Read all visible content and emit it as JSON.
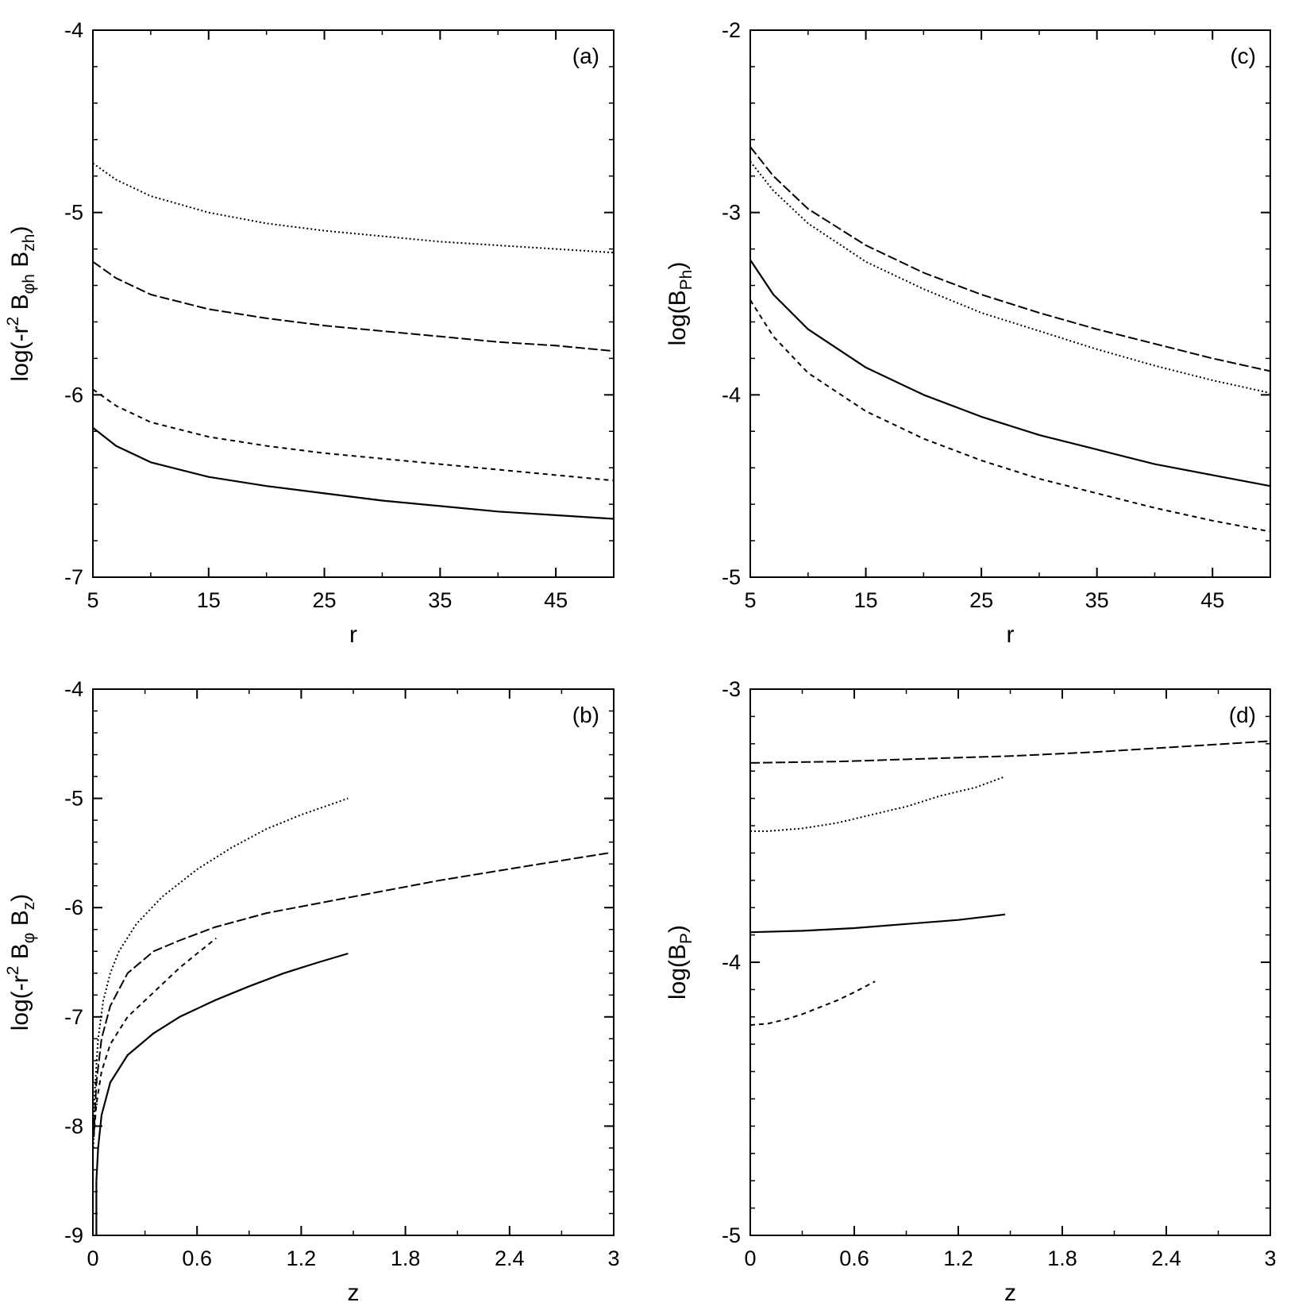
{
  "chart_data": [
    {
      "type": "line",
      "panel": "(a)",
      "xlabel": "r",
      "ylabel": {
        "base": "log(-r",
        "sup": "2",
        "mid": " B",
        "sub1": "φh",
        "mid2": " B",
        "sub2": "zh",
        "end": ")"
      },
      "xlim": [
        5,
        50
      ],
      "ylim": [
        -7,
        -4
      ],
      "xticks": [
        "5",
        "15",
        "25",
        "35",
        "45"
      ],
      "xtick_values": [
        5,
        15,
        25,
        35,
        45
      ],
      "yticks": [
        "-4",
        "-5",
        "-6",
        "-7"
      ],
      "ytick_values": [
        -4,
        -5,
        -6,
        -7
      ],
      "yminor_step": 0.2,
      "xminor_step": 5,
      "series": [
        {
          "style": "dotted",
          "x": [
            5,
            7,
            10,
            15,
            20,
            25,
            30,
            35,
            40,
            45,
            50
          ],
          "y": [
            -4.73,
            -4.82,
            -4.91,
            -5.0,
            -5.06,
            -5.1,
            -5.13,
            -5.16,
            -5.18,
            -5.2,
            -5.22
          ]
        },
        {
          "style": "dashed",
          "x": [
            5,
            7,
            10,
            15,
            20,
            25,
            30,
            35,
            40,
            45,
            50
          ],
          "y": [
            -5.27,
            -5.36,
            -5.45,
            -5.53,
            -5.58,
            -5.62,
            -5.65,
            -5.68,
            -5.71,
            -5.73,
            -5.76
          ]
        },
        {
          "style": "short-dashed",
          "x": [
            5,
            7,
            10,
            15,
            20,
            25,
            30,
            35,
            40,
            45,
            50
          ],
          "y": [
            -5.97,
            -6.06,
            -6.15,
            -6.23,
            -6.28,
            -6.32,
            -6.35,
            -6.38,
            -6.41,
            -6.44,
            -6.47
          ]
        },
        {
          "style": "solid",
          "x": [
            5,
            7,
            10,
            15,
            20,
            25,
            30,
            35,
            40,
            45,
            50
          ],
          "y": [
            -6.18,
            -6.28,
            -6.37,
            -6.45,
            -6.5,
            -6.54,
            -6.58,
            -6.61,
            -6.64,
            -6.66,
            -6.68
          ]
        }
      ]
    },
    {
      "type": "line",
      "panel": "(c)",
      "xlabel": "r",
      "ylabel": {
        "base": "log(B",
        "sub1": "Ph",
        "end": ")"
      },
      "xlim": [
        5,
        50
      ],
      "ylim": [
        -5,
        -2
      ],
      "xticks": [
        "5",
        "15",
        "25",
        "35",
        "45"
      ],
      "xtick_values": [
        5,
        15,
        25,
        35,
        45
      ],
      "yticks": [
        "-2",
        "-3",
        "-4",
        "-5"
      ],
      "ytick_values": [
        -2,
        -3,
        -4,
        -5
      ],
      "yminor_step": 0.2,
      "xminor_step": 5,
      "series": [
        {
          "style": "dashed",
          "x": [
            5,
            7,
            10,
            15,
            20,
            25,
            30,
            35,
            40,
            45,
            50
          ],
          "y": [
            -2.64,
            -2.8,
            -2.98,
            -3.18,
            -3.33,
            -3.45,
            -3.55,
            -3.64,
            -3.72,
            -3.8,
            -3.87
          ]
        },
        {
          "style": "dotted",
          "x": [
            5,
            7,
            10,
            15,
            20,
            25,
            30,
            35,
            40,
            45,
            50
          ],
          "y": [
            -2.72,
            -2.88,
            -3.06,
            -3.27,
            -3.42,
            -3.55,
            -3.65,
            -3.75,
            -3.84,
            -3.92,
            -3.99
          ]
        },
        {
          "style": "solid",
          "x": [
            5,
            7,
            10,
            15,
            20,
            25,
            30,
            35,
            40,
            45,
            50
          ],
          "y": [
            -3.26,
            -3.45,
            -3.64,
            -3.85,
            -4.0,
            -4.12,
            -4.22,
            -4.3,
            -4.38,
            -4.44,
            -4.5
          ]
        },
        {
          "style": "short-dashed",
          "x": [
            5,
            7,
            10,
            15,
            20,
            25,
            30,
            35,
            40,
            45,
            50
          ],
          "y": [
            -3.48,
            -3.68,
            -3.88,
            -4.09,
            -4.24,
            -4.36,
            -4.46,
            -4.54,
            -4.62,
            -4.69,
            -4.75
          ]
        }
      ]
    },
    {
      "type": "line",
      "panel": "(b)",
      "xlabel": "z",
      "ylabel": {
        "base": "log(-r",
        "sup": "2",
        "mid": " B",
        "sub1": "φ",
        "mid2": " B",
        "sub2": "z",
        "end": ")"
      },
      "xlim": [
        0,
        3
      ],
      "ylim": [
        -9,
        -4
      ],
      "xticks": [
        "0",
        "0.6",
        "1.2",
        "1.8",
        "2.4",
        "3"
      ],
      "xtick_values": [
        0,
        0.6,
        1.2,
        1.8,
        2.4,
        3
      ],
      "yticks": [
        "-4",
        "-5",
        "-6",
        "-7",
        "-8",
        "-9"
      ],
      "ytick_values": [
        -4,
        -5,
        -6,
        -7,
        -8,
        -9
      ],
      "yminor_step": 0.2,
      "xminor_step": 0.3,
      "series": [
        {
          "style": "dotted",
          "x": [
            0.003,
            0.01,
            0.03,
            0.06,
            0.1,
            0.15,
            0.25,
            0.4,
            0.6,
            0.8,
            1.0,
            1.2,
            1.47
          ],
          "y": [
            -8.2,
            -7.7,
            -7.2,
            -6.85,
            -6.6,
            -6.4,
            -6.15,
            -5.9,
            -5.65,
            -5.45,
            -5.28,
            -5.15,
            -5.0
          ]
        },
        {
          "style": "dashed",
          "x": [
            0.005,
            0.02,
            0.05,
            0.1,
            0.2,
            0.35,
            0.5,
            0.7,
            1.0,
            1.5,
            2.0,
            2.5,
            2.97
          ],
          "y": [
            -8.1,
            -7.6,
            -7.2,
            -6.9,
            -6.6,
            -6.4,
            -6.3,
            -6.18,
            -6.05,
            -5.9,
            -5.75,
            -5.62,
            -5.5
          ]
        },
        {
          "style": "short-dashed",
          "x": [
            0.005,
            0.02,
            0.05,
            0.1,
            0.2,
            0.3,
            0.4,
            0.5,
            0.6,
            0.71
          ],
          "y": [
            -8.1,
            -7.8,
            -7.5,
            -7.25,
            -7.0,
            -6.85,
            -6.7,
            -6.55,
            -6.42,
            -6.28
          ]
        },
        {
          "style": "solid",
          "x": [
            0.02,
            0.03,
            0.05,
            0.1,
            0.2,
            0.35,
            0.5,
            0.7,
            0.9,
            1.1,
            1.3,
            1.47
          ],
          "y": [
            -8.5,
            -8.2,
            -7.9,
            -7.6,
            -7.35,
            -7.15,
            -7.0,
            -6.85,
            -6.72,
            -6.6,
            -6.5,
            -6.42
          ]
        },
        {
          "style": "solid",
          "x": [
            0.02,
            0.02
          ],
          "y": [
            -9.0,
            -8.5
          ]
        }
      ]
    },
    {
      "type": "line",
      "panel": "(d)",
      "xlabel": "z",
      "ylabel": {
        "base": "log(B",
        "sub1": "P",
        "end": ")"
      },
      "xlim": [
        0,
        3
      ],
      "ylim": [
        -5,
        -3
      ],
      "xticks": [
        "0",
        "0.6",
        "1.2",
        "1.8",
        "2.4",
        "3"
      ],
      "xtick_values": [
        0,
        0.6,
        1.2,
        1.8,
        2.4,
        3
      ],
      "yticks": [
        "-3",
        "-4",
        "-5"
      ],
      "ytick_values": [
        -3,
        -4,
        -5
      ],
      "yminor_step": 0.1,
      "xminor_step": 0.3,
      "series": [
        {
          "style": "dashed",
          "x": [
            0,
            0.5,
            1.0,
            1.5,
            2.0,
            2.5,
            3.0
          ],
          "y": [
            -3.27,
            -3.265,
            -3.255,
            -3.245,
            -3.23,
            -3.21,
            -3.19
          ]
        },
        {
          "style": "dotted",
          "x": [
            0,
            0.1,
            0.3,
            0.5,
            0.7,
            0.9,
            1.1,
            1.3,
            1.47
          ],
          "y": [
            -3.52,
            -3.52,
            -3.51,
            -3.49,
            -3.46,
            -3.43,
            -3.39,
            -3.36,
            -3.32
          ]
        },
        {
          "style": "solid",
          "x": [
            0,
            0.3,
            0.6,
            0.9,
            1.2,
            1.47
          ],
          "y": [
            -3.89,
            -3.885,
            -3.875,
            -3.86,
            -3.845,
            -3.825
          ]
        },
        {
          "style": "short-dashed",
          "x": [
            0,
            0.1,
            0.2,
            0.3,
            0.4,
            0.5,
            0.6,
            0.72
          ],
          "y": [
            -4.23,
            -4.225,
            -4.21,
            -4.19,
            -4.165,
            -4.14,
            -4.11,
            -4.07
          ]
        }
      ]
    }
  ]
}
